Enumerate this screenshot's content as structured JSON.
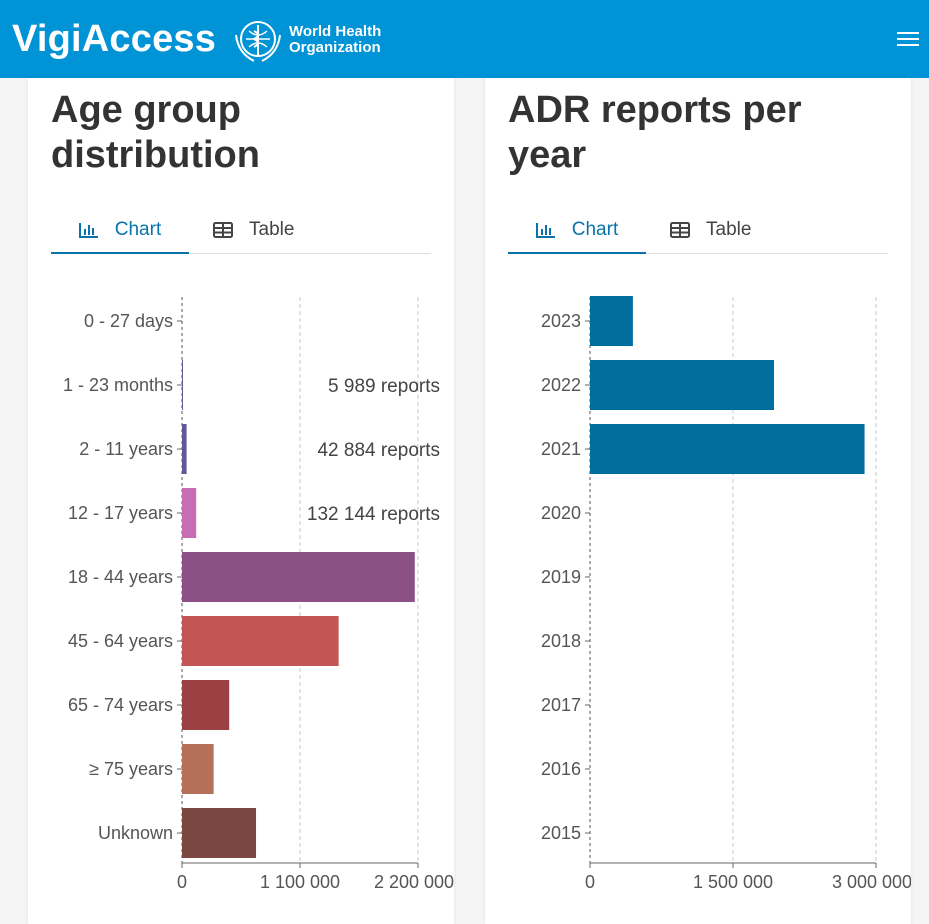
{
  "header": {
    "brand": "VigiAccess",
    "org_line1": "World Health",
    "org_line2": "Organization",
    "bg_color": "#0093d5"
  },
  "icons": {
    "menu": "hamburger-icon",
    "chart_tab": "bar-chart-icon",
    "table_tab": "table-icon",
    "logo": "who-emblem-icon"
  },
  "age_panel": {
    "title": "Age group distribution",
    "tabs": [
      {
        "label": "Chart",
        "active": true
      },
      {
        "label": "Table",
        "active": false
      }
    ],
    "chart_data": {
      "type": "bar",
      "orientation": "horizontal",
      "categories": [
        "0 - 27 days",
        "1 - 23 months",
        "2 - 11 years",
        "12 - 17 years",
        "18 - 44 years",
        "45 - 64 years",
        "65 - 74 years",
        "≥ 75 years",
        "Unknown"
      ],
      "values": [
        0,
        5989,
        42884,
        132144,
        2170000,
        1460000,
        440000,
        295000,
        690000
      ],
      "colors": [
        "#6b5b95",
        "#6b5b95",
        "#5f5a96",
        "#c76db4",
        "#8b5186",
        "#c45555",
        "#9b4143",
        "#b5705a",
        "#7a4840"
      ],
      "data_labels": [
        {
          "category": "1 - 23 months",
          "text": "5 989 reports"
        },
        {
          "category": "2 - 11 years",
          "text": "42 884 reports"
        },
        {
          "category": "12 - 17 years",
          "text": "132 144 reports"
        }
      ],
      "xlim": [
        0,
        2200000
      ],
      "xticks": [
        0,
        1100000,
        2200000
      ],
      "xtick_labels": [
        "0",
        "1 100 000",
        "2 200 000"
      ],
      "grid": true
    }
  },
  "year_panel": {
    "title": "ADR reports per year",
    "tabs": [
      {
        "label": "Chart",
        "active": true
      },
      {
        "label": "Table",
        "active": false
      }
    ],
    "chart_data": {
      "type": "bar",
      "orientation": "horizontal",
      "categories": [
        "2023",
        "2022",
        "2021",
        "2020",
        "2019",
        "2018",
        "2017",
        "2016",
        "2015"
      ],
      "values": [
        450000,
        1930000,
        2880000,
        0,
        0,
        0,
        0,
        0,
        0
      ],
      "color": "#006e9f",
      "xlim": [
        0,
        3000000
      ],
      "xticks": [
        0,
        1500000,
        3000000
      ],
      "xtick_labels": [
        "0",
        "1 500 000",
        "3 000 000"
      ],
      "grid": true
    }
  }
}
